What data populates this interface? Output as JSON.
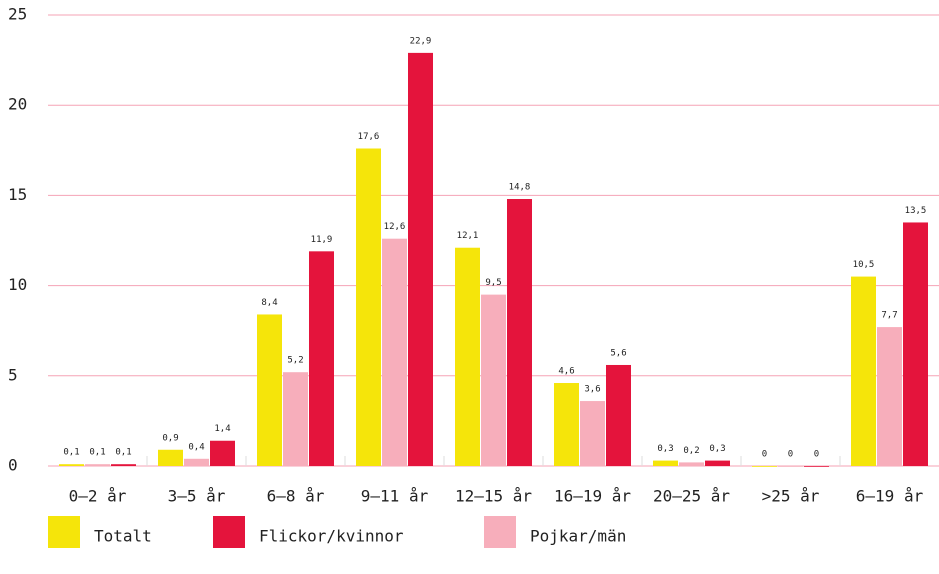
{
  "chart_data": {
    "type": "bar",
    "categories": [
      "0–2 år",
      "3–5 år",
      "6–8 år",
      "9–11 år",
      "12–15 år",
      "16–19 år",
      "20–25 år",
      ">25 år",
      "6–19 år"
    ],
    "series": [
      {
        "name": "Totalt",
        "color": "#f5e50a",
        "values": [
          0.1,
          0.9,
          8.4,
          17.6,
          12.1,
          4.6,
          0.3,
          0,
          10.5
        ],
        "value_labels": [
          "0,1",
          "0,9",
          "8,4",
          "17,6",
          "12,1",
          "4,6",
          "0,3",
          "0",
          "10,5"
        ]
      },
      {
        "name": "Flickor/kvinnor",
        "color": "#e4143c",
        "values": [
          0.1,
          1.4,
          11.9,
          22.9,
          14.8,
          5.6,
          0.3,
          0,
          13.5
        ],
        "value_labels": [
          "0,1",
          "1,4",
          "11,9",
          "22,9",
          "14,8",
          "5,6",
          "0,3",
          "0",
          "13,5"
        ]
      },
      {
        "name": "Pojkar/män",
        "color": "#f7aebb",
        "values": [
          0.1,
          0.4,
          5.2,
          12.6,
          9.5,
          3.6,
          0.2,
          0,
          7.7
        ],
        "value_labels": [
          "0,1",
          "0,4",
          "5,2",
          "12,6",
          "9,5",
          "3,6",
          "0,2",
          "0",
          "7,7"
        ]
      }
    ],
    "ylim": [
      0,
      25
    ],
    "yticks": [
      0,
      5,
      10,
      15,
      20,
      25
    ],
    "grid": true,
    "legend": "bottom"
  }
}
